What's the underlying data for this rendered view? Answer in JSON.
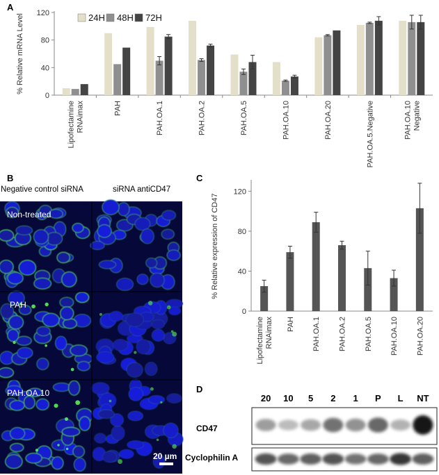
{
  "panels": {
    "a": {
      "letter": "A"
    },
    "b": {
      "letter": "B"
    },
    "c": {
      "letter": "C"
    },
    "d": {
      "letter": "D"
    }
  },
  "chart_data": [
    {
      "type": "bar",
      "panel": "A",
      "categories": [
        "Lipofectamine RNAimax",
        "PAH",
        "PAH.OA.1",
        "PAH.OA.2",
        "PAH.OA.5",
        "PAH.OA.10",
        "PAH.OA.20",
        "PAH.OA.5.Negative",
        "PAH.OA.10 Negative"
      ],
      "category_lines": [
        [
          "Lipofectamine",
          "RNAimax"
        ],
        [
          "PAH"
        ],
        [
          "PAH.OA.1"
        ],
        [
          "PAH.OA.2"
        ],
        [
          "PAH.OA.5"
        ],
        [
          "PAH.OA.10"
        ],
        [
          "PAH.OA.20"
        ],
        [
          "PAH.OA.5.Negative"
        ],
        [
          "PAH.OA.10",
          "Negative"
        ]
      ],
      "series": [
        {
          "name": "24H",
          "color": "#e3dfc9",
          "values": [
            10,
            90,
            99,
            108,
            59,
            48,
            84,
            102,
            108
          ],
          "errors": [
            0,
            0,
            0,
            0,
            0,
            0,
            0,
            0,
            0
          ]
        },
        {
          "name": "48H",
          "color": "#8f8f8f",
          "values": [
            9,
            45,
            50,
            51,
            34,
            21,
            87,
            105,
            106
          ],
          "errors": [
            0,
            0,
            6,
            2,
            4,
            1,
            1,
            1,
            10
          ]
        },
        {
          "name": "72H",
          "color": "#444444",
          "values": [
            16,
            69,
            85,
            72,
            48,
            27,
            94,
            108,
            106
          ],
          "errors": [
            0,
            0,
            3,
            2,
            10,
            2,
            0,
            6,
            10
          ]
        }
      ],
      "xlabel": "",
      "ylabel": "% Relative mRNA Level",
      "ylim": [
        0,
        120
      ],
      "yticks": [
        0,
        40,
        80,
        120
      ],
      "legend": "top-left",
      "grid": false
    },
    {
      "type": "bar",
      "panel": "C",
      "categories": [
        "Lipofectamine RNAimax",
        "PAH",
        "PAH.OA.1",
        "PAH.OA.2",
        "PAH.OA.5",
        "PAH.OA.10",
        "PAH.OA.20"
      ],
      "category_lines": [
        [
          "Lipofectamine",
          "RNAimax"
        ],
        [
          "PAH"
        ],
        [
          "PAH.OA.1"
        ],
        [
          "PAH.OA.2"
        ],
        [
          "PAH.OA.5"
        ],
        [
          "PAH.OA.10"
        ],
        [
          "PAH.OA.20"
        ]
      ],
      "series": [
        {
          "color": "#555555",
          "values": [
            25,
            59,
            89,
            66,
            43,
            33,
            103
          ],
          "errors": [
            6,
            6,
            10,
            4,
            17,
            8,
            25
          ]
        }
      ],
      "xlabel": "",
      "ylabel": "% Relative expression of CD47",
      "ylim": [
        0,
        130
      ],
      "yticks": [
        0,
        40,
        80,
        120
      ],
      "grid": false
    }
  ],
  "microscopy": {
    "column_headers": [
      "Negative control siRNA",
      "siRNA antiCD47"
    ],
    "row_labels": [
      "Non-treated",
      "PAH",
      "PAH.OA.10"
    ],
    "scale_bar": "20 µm"
  },
  "western_blot": {
    "lanes": [
      "20",
      "10",
      "5",
      "2",
      "1",
      "P",
      "L",
      "NT"
    ],
    "proteins": [
      "CD47",
      "Cyclophilin A"
    ],
    "cd47_intensity": [
      0.35,
      0.2,
      0.3,
      0.55,
      0.4,
      0.6,
      0.25,
      1.0
    ],
    "cyclo_intensity": [
      0.7,
      0.6,
      0.65,
      0.7,
      0.55,
      0.6,
      0.85,
      0.65
    ]
  }
}
